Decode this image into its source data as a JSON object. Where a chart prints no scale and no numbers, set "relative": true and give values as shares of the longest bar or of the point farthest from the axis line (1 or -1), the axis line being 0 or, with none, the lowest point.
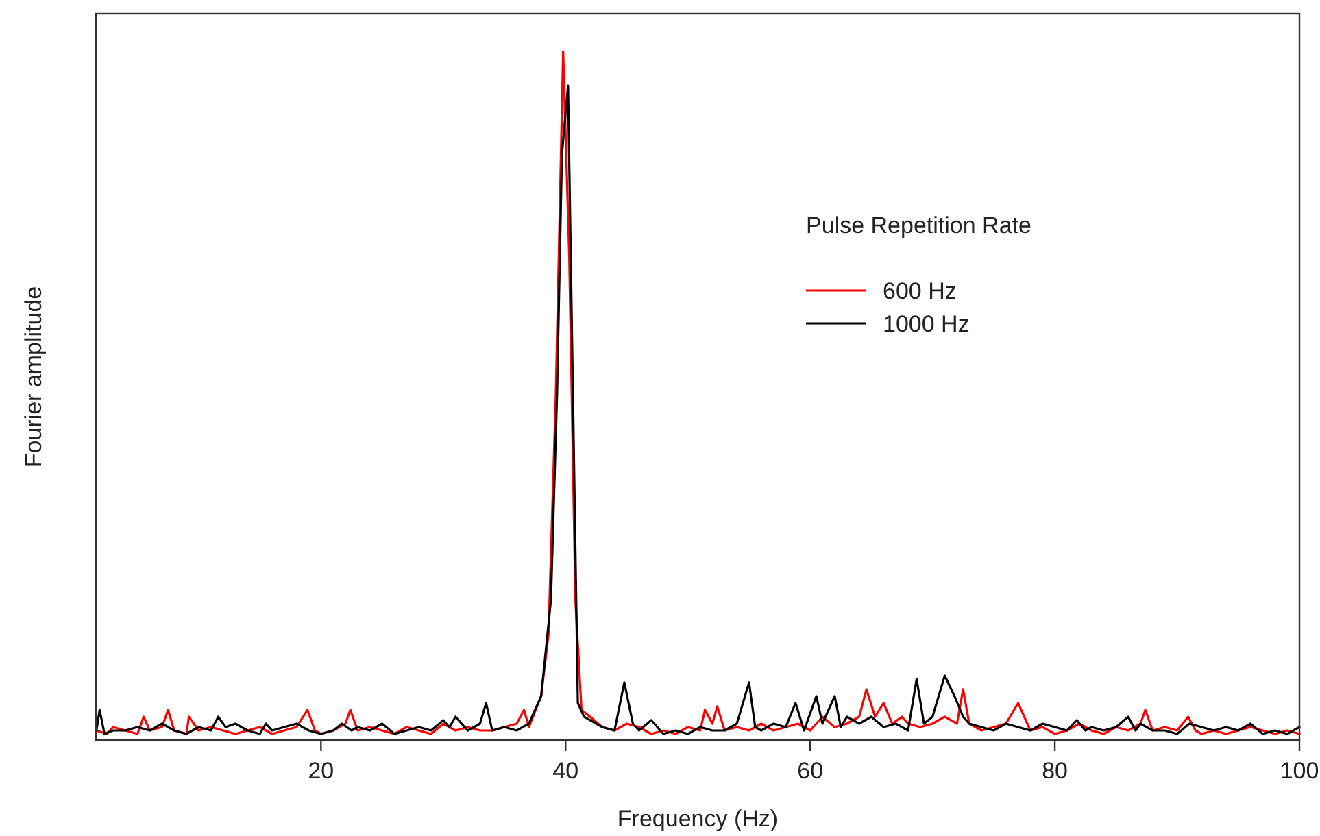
{
  "chart_data": {
    "type": "line",
    "xlabel": "Frequency (Hz)",
    "ylabel": "Fourier amplitude",
    "relative": true,
    "xlim": [
      1.6,
      100
    ],
    "xticks": [
      20,
      40,
      60,
      80,
      100
    ],
    "legend": "top right",
    "legend_title": "Pulse Repetition Rate",
    "line_style": "solid",
    "series": [
      {
        "name": "600 Hz",
        "color": "#ff0000",
        "x": [
          1.6,
          2.5,
          3,
          4,
          5,
          5.5,
          6,
          7,
          7.5,
          8,
          9,
          9.2,
          10,
          11,
          12,
          13,
          14,
          15,
          16,
          17,
          18,
          18.9,
          19.5,
          20,
          21,
          22,
          22.4,
          23,
          24,
          25,
          26,
          27,
          28,
          29,
          30,
          31,
          32,
          33,
          34,
          35,
          36,
          36.6,
          37,
          38,
          38.6,
          39.2,
          39.8,
          40.3,
          40.8,
          41.3,
          42,
          43,
          44,
          45,
          46,
          47,
          48,
          49,
          50,
          51,
          51.4,
          52,
          52.4,
          53,
          54,
          55,
          56,
          57,
          58,
          59,
          60,
          61,
          62,
          63,
          64,
          64.6,
          65.3,
          66,
          66.7,
          67.5,
          68,
          69,
          70,
          71,
          72,
          72.5,
          73,
          74,
          75,
          76,
          77,
          78,
          79,
          80,
          81,
          82,
          83,
          84,
          85,
          86,
          87,
          87.4,
          88,
          89,
          90,
          90.9,
          91.5,
          92,
          93,
          94,
          95,
          96,
          97,
          98,
          99,
          100
        ],
        "values": [
          0.01,
          0.005,
          0.015,
          0.01,
          0.005,
          0.03,
          0.01,
          0.015,
          0.04,
          0.01,
          0.005,
          0.03,
          0.01,
          0.015,
          0.01,
          0.005,
          0.01,
          0.015,
          0.005,
          0.01,
          0.015,
          0.04,
          0.01,
          0.005,
          0.01,
          0.02,
          0.04,
          0.01,
          0.015,
          0.01,
          0.005,
          0.015,
          0.01,
          0.005,
          0.02,
          0.01,
          0.015,
          0.01,
          0.01,
          0.015,
          0.02,
          0.04,
          0.015,
          0.06,
          0.15,
          0.5,
          1,
          0.7,
          0.2,
          0.04,
          0.03,
          0.015,
          0.01,
          0.02,
          0.015,
          0.005,
          0.01,
          0.005,
          0.015,
          0.01,
          0.04,
          0.02,
          0.045,
          0.01,
          0.015,
          0.01,
          0.02,
          0.01,
          0.015,
          0.02,
          0.01,
          0.03,
          0.015,
          0.02,
          0.03,
          0.07,
          0.03,
          0.05,
          0.02,
          0.03,
          0.02,
          0.015,
          0.02,
          0.03,
          0.02,
          0.07,
          0.02,
          0.01,
          0.015,
          0.02,
          0.05,
          0.01,
          0.015,
          0.005,
          0.01,
          0.02,
          0.01,
          0.005,
          0.015,
          0.01,
          0.02,
          0.04,
          0.01,
          0.015,
          0.01,
          0.03,
          0.01,
          0.005,
          0.01,
          0.005,
          0.01,
          0.015,
          0.01,
          0.005,
          0.01,
          0.005
        ]
      },
      {
        "name": "1000 Hz",
        "color": "#000000",
        "x": [
          1.6,
          1.9,
          2.3,
          3,
          4,
          5,
          6,
          7,
          8,
          9,
          10,
          11,
          11.6,
          12.2,
          13,
          14,
          15,
          15.5,
          16,
          17,
          18,
          19,
          20,
          21,
          21.7,
          22.5,
          23,
          24,
          25,
          26,
          27,
          28,
          29,
          30,
          30.5,
          31,
          32,
          33,
          33.5,
          34,
          35,
          36,
          37,
          38,
          38.8,
          39.3,
          39.7,
          40.2,
          40.6,
          41,
          41.5,
          42,
          43,
          44,
          44.8,
          45.5,
          46,
          47,
          48,
          49,
          50,
          51,
          52,
          53,
          54,
          55,
          55.5,
          56,
          57,
          58,
          58.8,
          59.5,
          60.5,
          61,
          62,
          62.5,
          63,
          64,
          65,
          66,
          67,
          68,
          68.7,
          69.3,
          70,
          71,
          71.8,
          72.5,
          73,
          74,
          75,
          76,
          77,
          78,
          79,
          80,
          81,
          81.8,
          82.5,
          83,
          84,
          85,
          86,
          86.6,
          87,
          88,
          89,
          90,
          91,
          92,
          93,
          94,
          95,
          96,
          97,
          98,
          99,
          100
        ],
        "values": [
          0.005,
          0.04,
          0.005,
          0.01,
          0.01,
          0.015,
          0.01,
          0.02,
          0.01,
          0.005,
          0.015,
          0.01,
          0.03,
          0.015,
          0.02,
          0.01,
          0.005,
          0.02,
          0.01,
          0.015,
          0.02,
          0.01,
          0.005,
          0.01,
          0.02,
          0.01,
          0.015,
          0.01,
          0.02,
          0.005,
          0.01,
          0.015,
          0.01,
          0.025,
          0.015,
          0.03,
          0.01,
          0.02,
          0.05,
          0.01,
          0.015,
          0.01,
          0.02,
          0.06,
          0.2,
          0.5,
          0.85,
          0.95,
          0.5,
          0.05,
          0.03,
          0.025,
          0.015,
          0.01,
          0.08,
          0.02,
          0.01,
          0.025,
          0.005,
          0.01,
          0.005,
          0.015,
          0.01,
          0.01,
          0.02,
          0.08,
          0.015,
          0.01,
          0.02,
          0.015,
          0.05,
          0.01,
          0.06,
          0.02,
          0.06,
          0.015,
          0.03,
          0.02,
          0.03,
          0.015,
          0.02,
          0.01,
          0.085,
          0.02,
          0.03,
          0.09,
          0.06,
          0.03,
          0.02,
          0.015,
          0.01,
          0.02,
          0.015,
          0.01,
          0.02,
          0.015,
          0.01,
          0.025,
          0.01,
          0.015,
          0.01,
          0.015,
          0.03,
          0.01,
          0.02,
          0.01,
          0.01,
          0.005,
          0.02,
          0.015,
          0.01,
          0.015,
          0.01,
          0.02,
          0.005,
          0.01,
          0.005,
          0.015
        ]
      }
    ]
  }
}
